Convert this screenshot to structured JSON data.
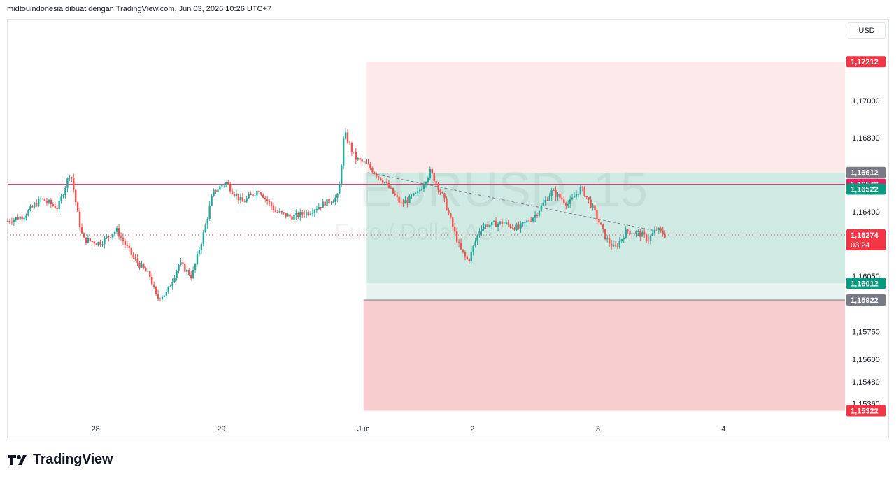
{
  "header": {
    "text": "midtouindonesia dibuat dengan TradingView.com, Jun 03, 2026 10:26 UTC+7"
  },
  "currency_label": "USD",
  "footer": {
    "brand": "TradingView"
  },
  "watermark": {
    "symbol": "EURUSD, 15",
    "description": "Euro / Dollar AS"
  },
  "colors": {
    "up": "#26a69a",
    "down": "#ef5350",
    "stop_zone": "#f7cdd0",
    "target_zone": "#fde9ea",
    "profit_zone": "#cfeae3",
    "line": "#e91e63",
    "grid_border": "#e0e3eb"
  },
  "chart_data": {
    "type": "candlestick",
    "symbol": "EURUSD",
    "interval": "15",
    "ylim": [
      1.1529,
      1.1744
    ],
    "price_ticks": [
      "1,17000",
      "1,16800",
      "1,16400",
      "1,16050",
      "1,15750",
      "1,15600",
      "1,15480",
      "1,15360"
    ],
    "price_tick_values": [
      1.17,
      1.168,
      1.164,
      1.1605,
      1.1575,
      1.156,
      1.1548,
      1.1536
    ],
    "time_ticks": [
      "28",
      "29",
      "Jun",
      "2",
      "3",
      "4"
    ],
    "time_tick_positions": [
      0.105,
      0.255,
      0.425,
      0.555,
      0.705,
      0.855
    ],
    "horizontal_line": {
      "price": 1.16548,
      "label": "1,16548"
    },
    "last_price": {
      "price": 1.16274,
      "label": "1,16274",
      "countdown": "03:24"
    },
    "position_tool": {
      "target_upper": {
        "price": 1.17212,
        "label": "1,17212"
      },
      "entry": {
        "price": 1.16612,
        "label": "1,16612"
      },
      "target_lower": {
        "price": 1.16012,
        "label": "1,16012"
      },
      "stop": {
        "price": 1.15922,
        "label": "1,15922"
      },
      "stop_lower": {
        "price": 1.15322,
        "label": "1,15322"
      }
    },
    "extra_axis_labels": [
      {
        "price": 1.16522,
        "label": "1,16522"
      }
    ],
    "trendline": {
      "from": [
        0.43,
        1.16612
      ],
      "to": [
        0.77,
        1.163
      ]
    },
    "price_path": [
      [
        0.0,
        1.1635
      ],
      [
        0.02,
        1.1638
      ],
      [
        0.04,
        1.1647
      ],
      [
        0.06,
        1.1642
      ],
      [
        0.075,
        1.1662
      ],
      [
        0.085,
        1.1635
      ],
      [
        0.09,
        1.1625
      ],
      [
        0.11,
        1.1623
      ],
      [
        0.13,
        1.163
      ],
      [
        0.15,
        1.1615
      ],
      [
        0.17,
        1.1605
      ],
      [
        0.178,
        1.1593
      ],
      [
        0.19,
        1.1596
      ],
      [
        0.205,
        1.1612
      ],
      [
        0.22,
        1.1605
      ],
      [
        0.235,
        1.163
      ],
      [
        0.245,
        1.165
      ],
      [
        0.26,
        1.1656
      ],
      [
        0.28,
        1.1645
      ],
      [
        0.3,
        1.1652
      ],
      [
        0.32,
        1.164
      ],
      [
        0.34,
        1.1637
      ],
      [
        0.36,
        1.164
      ],
      [
        0.38,
        1.1645
      ],
      [
        0.395,
        1.1648
      ],
      [
        0.402,
        1.1683
      ],
      [
        0.415,
        1.1669
      ],
      [
        0.43,
        1.1665
      ],
      [
        0.45,
        1.1656
      ],
      [
        0.47,
        1.1644
      ],
      [
        0.49,
        1.165
      ],
      [
        0.505,
        1.1662
      ],
      [
        0.52,
        1.1648
      ],
      [
        0.54,
        1.162
      ],
      [
        0.55,
        1.1613
      ],
      [
        0.565,
        1.1632
      ],
      [
        0.59,
        1.1634
      ],
      [
        0.61,
        1.1631
      ],
      [
        0.63,
        1.1638
      ],
      [
        0.65,
        1.1651
      ],
      [
        0.67,
        1.1644
      ],
      [
        0.685,
        1.1653
      ],
      [
        0.7,
        1.1641
      ],
      [
        0.715,
        1.1625
      ],
      [
        0.725,
        1.162
      ],
      [
        0.74,
        1.163
      ],
      [
        0.755,
        1.1628
      ],
      [
        0.765,
        1.1625
      ],
      [
        0.775,
        1.16305
      ],
      [
        0.785,
        1.16274
      ]
    ]
  }
}
